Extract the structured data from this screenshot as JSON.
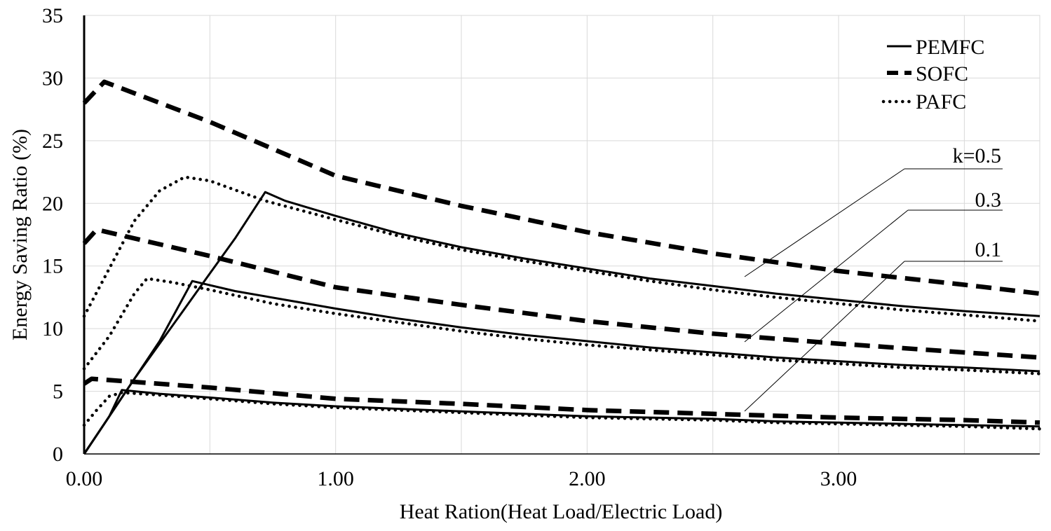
{
  "chart_data": {
    "type": "line",
    "title": "",
    "xlabel": "Heat Ration(Heat Load/Electric Load)",
    "ylabel": "Energy Saving Ratio (%)",
    "xlim": [
      0,
      3.8
    ],
    "ylim": [
      0,
      35
    ],
    "x_ticks": [
      0,
      0.5,
      1.0,
      1.5,
      2.0,
      2.5,
      3.0,
      3.5
    ],
    "x_tick_labels": [
      "0.00",
      "",
      "1.00",
      "",
      "2.00",
      "",
      "3.00",
      ""
    ],
    "y_ticks": [
      0,
      5,
      10,
      15,
      20,
      25,
      30,
      35
    ],
    "y_tick_labels": [
      "0",
      "5",
      "10",
      "15",
      "20",
      "25",
      "30",
      "35"
    ],
    "grid": true,
    "legend_position": "top-right",
    "legend": [
      {
        "label": "PEMFC",
        "style": "solid"
      },
      {
        "label": "SOFC",
        "style": "dashed"
      },
      {
        "label": "PAFC",
        "style": "dotted"
      }
    ],
    "k_labels": [
      "k=0.5",
      "0.3",
      "0.1"
    ],
    "series": [
      {
        "name": "PEMFC",
        "k": "0.5",
        "style": "solid",
        "x": [
          0,
          0.1,
          0.2,
          0.3,
          0.4,
          0.5,
          0.6,
          0.72,
          0.8,
          1.0,
          1.25,
          1.5,
          1.75,
          2.0,
          2.25,
          2.5,
          2.75,
          3.0,
          3.25,
          3.5,
          3.8
        ],
        "y": [
          0,
          3.0,
          6.0,
          8.8,
          11.6,
          14.4,
          17.2,
          20.9,
          20.2,
          19.0,
          17.6,
          16.5,
          15.6,
          14.8,
          14.0,
          13.4,
          12.8,
          12.3,
          11.8,
          11.4,
          11.0
        ]
      },
      {
        "name": "PEMFC",
        "k": "0.3",
        "style": "solid",
        "x": [
          0,
          0.1,
          0.2,
          0.3,
          0.43,
          0.6,
          0.8,
          1.0,
          1.25,
          1.5,
          1.75,
          2.0,
          2.25,
          2.5,
          2.75,
          3.0,
          3.25,
          3.5,
          3.8
        ],
        "y": [
          0,
          3.0,
          6.0,
          9.0,
          13.8,
          13.0,
          12.3,
          11.6,
          10.8,
          10.1,
          9.5,
          9.0,
          8.5,
          8.1,
          7.7,
          7.4,
          7.1,
          6.9,
          6.6
        ]
      },
      {
        "name": "PEMFC",
        "k": "0.1",
        "style": "solid",
        "x": [
          0,
          0.1,
          0.15,
          0.3,
          0.5,
          0.75,
          1.0,
          1.25,
          1.5,
          1.75,
          2.0,
          2.25,
          2.5,
          2.75,
          3.0,
          3.25,
          3.5,
          3.8
        ],
        "y": [
          0,
          3.0,
          5.1,
          4.8,
          4.5,
          4.1,
          3.8,
          3.6,
          3.4,
          3.2,
          3.0,
          2.9,
          2.8,
          2.6,
          2.5,
          2.4,
          2.3,
          2.2
        ]
      },
      {
        "name": "SOFC",
        "k": "0.5",
        "style": "dashed",
        "x": [
          0,
          0.08,
          0.5,
          1.0,
          1.5,
          2.0,
          2.5,
          3.0,
          3.5,
          3.8
        ],
        "y": [
          28.0,
          29.7,
          26.5,
          22.2,
          19.8,
          17.7,
          16.0,
          14.6,
          13.5,
          12.8
        ]
      },
      {
        "name": "SOFC",
        "k": "0.3",
        "style": "dashed",
        "x": [
          0,
          0.05,
          0.5,
          1.0,
          1.5,
          2.0,
          2.5,
          3.0,
          3.5,
          3.8
        ],
        "y": [
          16.8,
          17.9,
          15.8,
          13.3,
          11.9,
          10.6,
          9.6,
          8.8,
          8.1,
          7.7
        ]
      },
      {
        "name": "SOFC",
        "k": "0.1",
        "style": "dashed",
        "x": [
          0,
          0.03,
          0.5,
          1.0,
          1.5,
          2.0,
          2.5,
          3.0,
          3.5,
          3.8
        ],
        "y": [
          5.6,
          6.0,
          5.3,
          4.4,
          4.0,
          3.5,
          3.2,
          2.9,
          2.7,
          2.5
        ]
      },
      {
        "name": "PAFC",
        "k": "0.5",
        "style": "dotted",
        "x": [
          0,
          0.1,
          0.2,
          0.3,
          0.4,
          0.5,
          0.72,
          1.0,
          1.25,
          1.5,
          1.75,
          2.0,
          2.25,
          2.5,
          2.75,
          3.0,
          3.25,
          3.5,
          3.8
        ],
        "y": [
          11.0,
          14.8,
          18.6,
          21.0,
          22.1,
          21.8,
          20.2,
          18.7,
          17.4,
          16.3,
          15.4,
          14.6,
          13.8,
          13.1,
          12.5,
          12.0,
          11.5,
          11.1,
          10.6
        ]
      },
      {
        "name": "PAFC",
        "k": "0.3",
        "style": "dotted",
        "x": [
          0,
          0.1,
          0.2,
          0.25,
          0.35,
          0.5,
          0.75,
          1.0,
          1.25,
          1.5,
          1.75,
          2.0,
          2.25,
          2.5,
          2.75,
          3.0,
          3.25,
          3.5,
          3.8
        ],
        "y": [
          6.8,
          9.4,
          12.8,
          14.0,
          13.7,
          13.1,
          12.0,
          11.2,
          10.5,
          9.8,
          9.2,
          8.7,
          8.3,
          7.9,
          7.5,
          7.2,
          6.9,
          6.7,
          6.4
        ]
      },
      {
        "name": "PAFC",
        "k": "0.1",
        "style": "dotted",
        "x": [
          0,
          0.05,
          0.1,
          0.15,
          0.3,
          0.5,
          0.75,
          1.0,
          1.25,
          1.5,
          1.75,
          2.0,
          2.25,
          2.5,
          2.75,
          3.0,
          3.25,
          3.5,
          3.8
        ],
        "y": [
          2.3,
          3.5,
          4.6,
          4.9,
          4.7,
          4.4,
          4.0,
          3.7,
          3.5,
          3.3,
          3.1,
          2.9,
          2.8,
          2.7,
          2.5,
          2.4,
          2.3,
          2.2,
          2.0
        ]
      }
    ]
  }
}
